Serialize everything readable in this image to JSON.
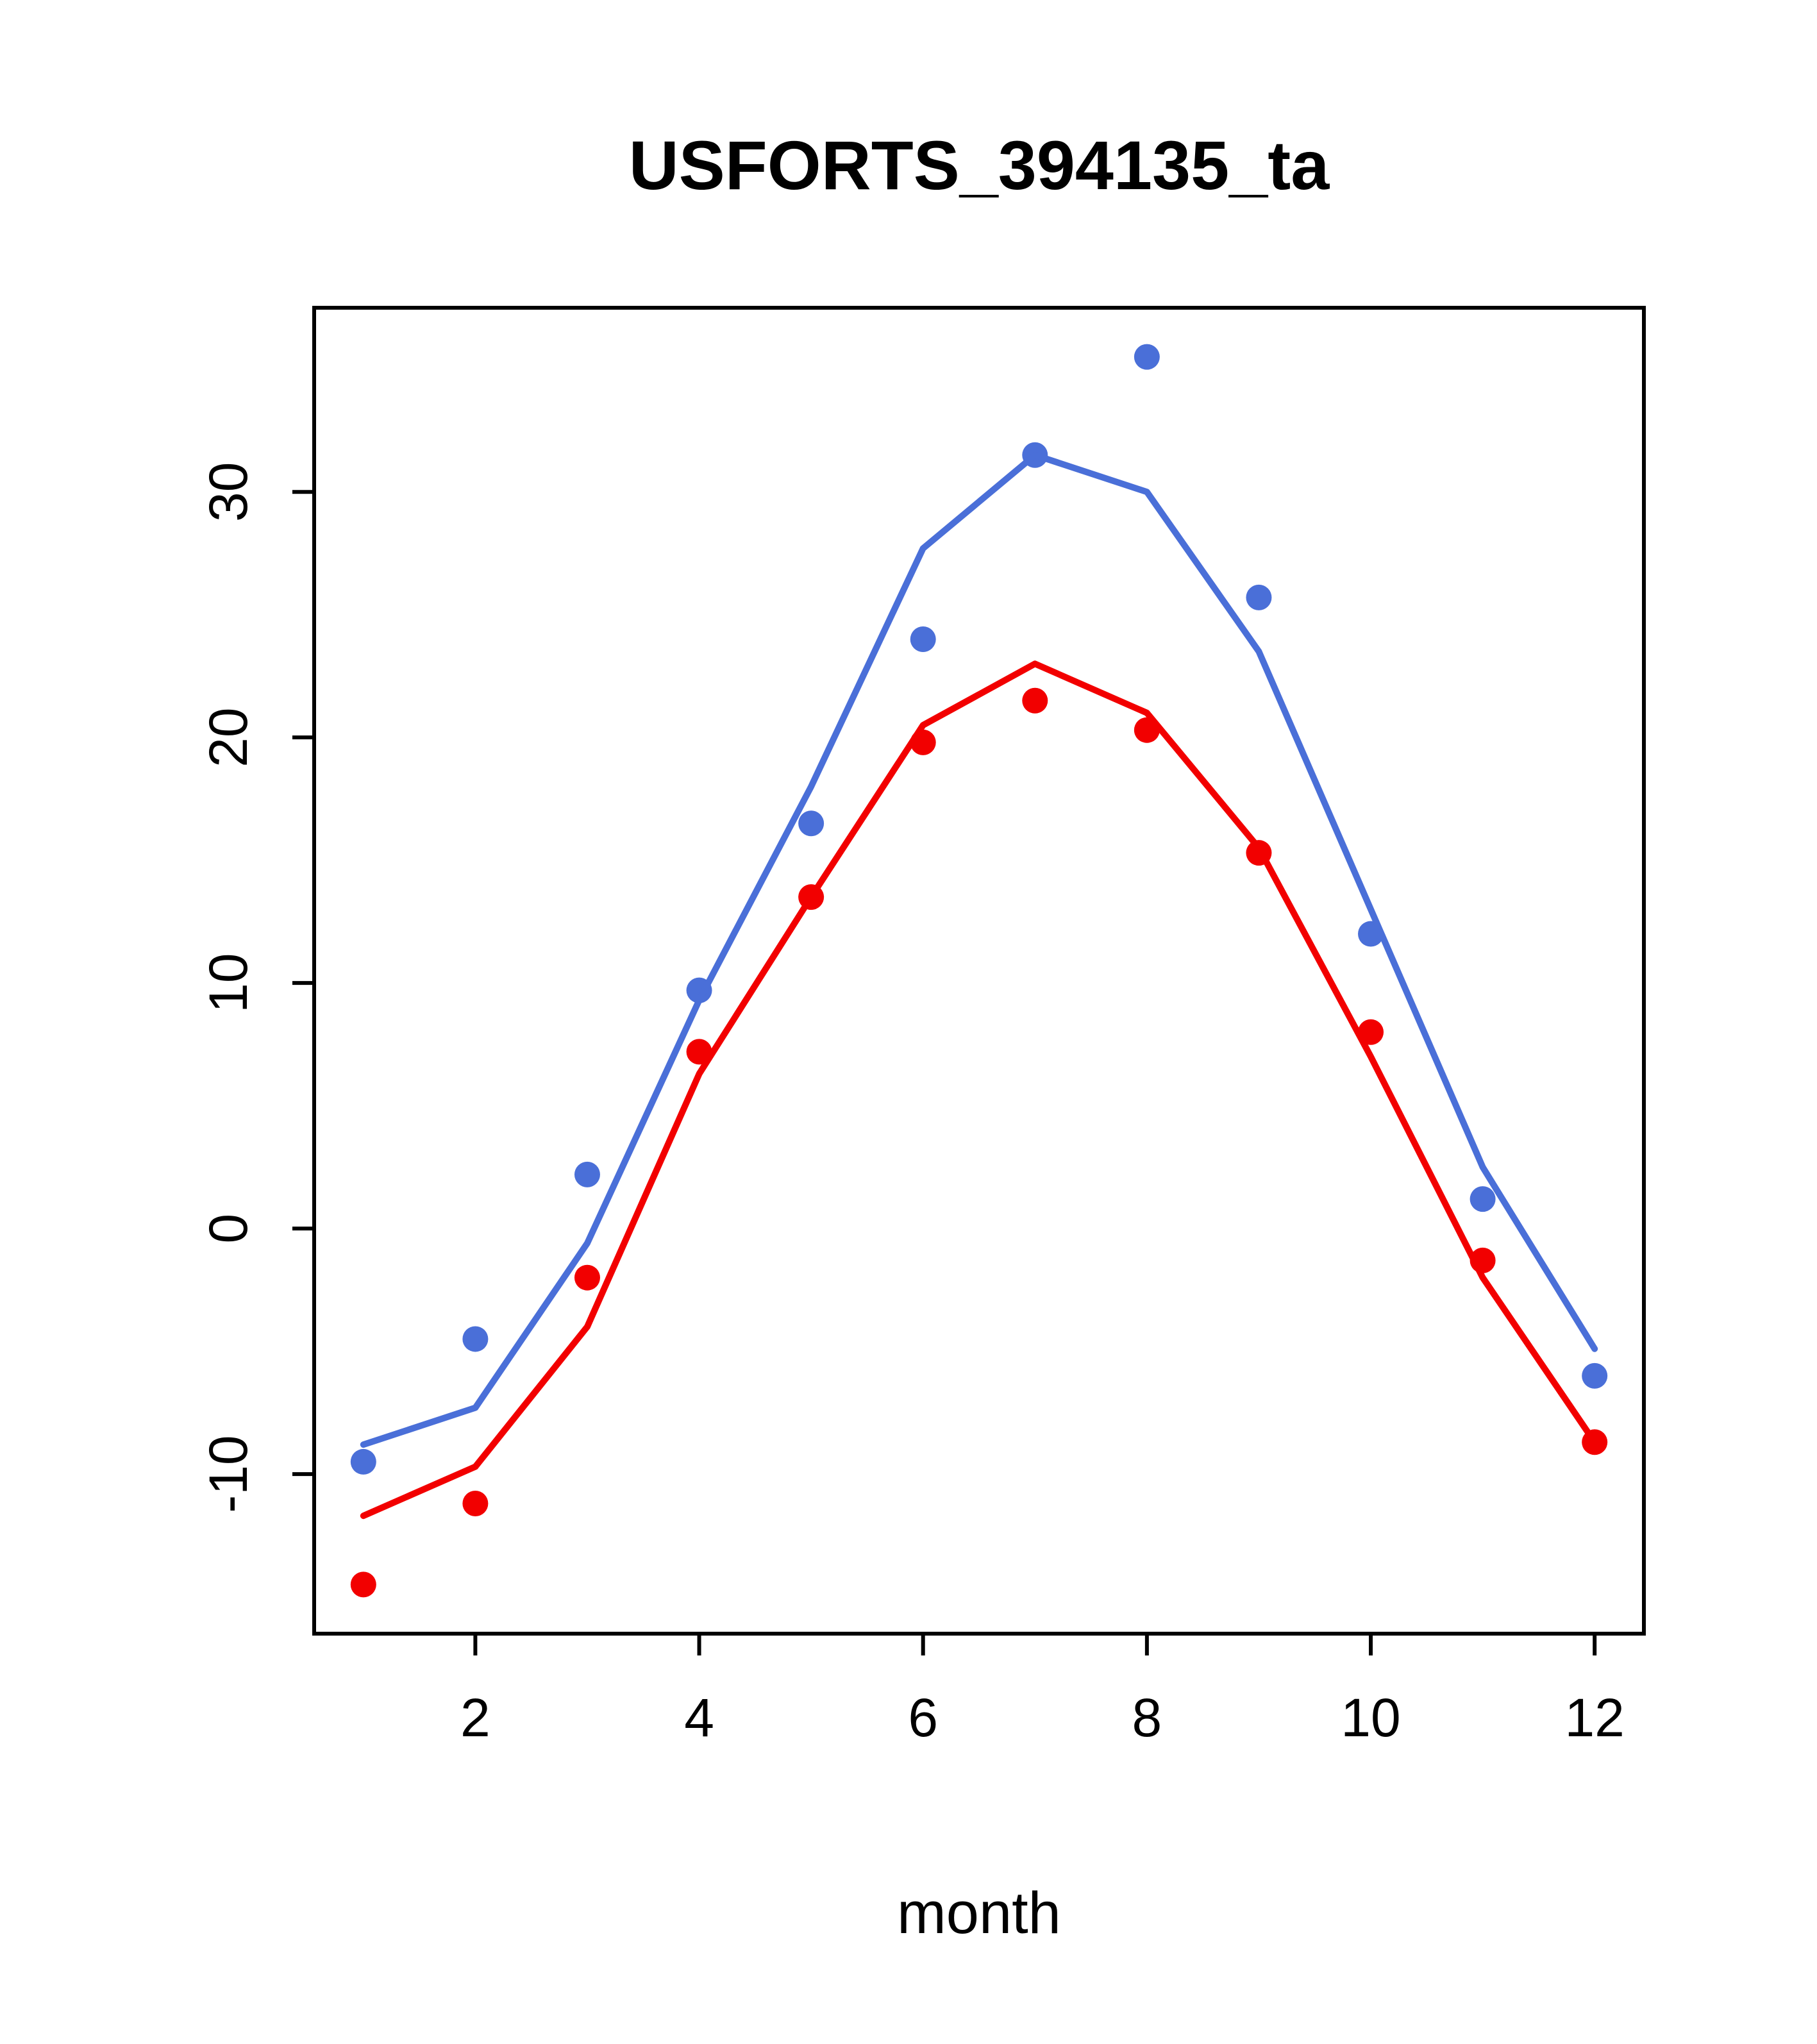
{
  "chart_data": {
    "type": "line",
    "title": "USFORTS_394135_ta",
    "xlabel": "month",
    "ylabel": "",
    "x": [
      1,
      2,
      3,
      4,
      5,
      6,
      7,
      8,
      9,
      10,
      11,
      12
    ],
    "xlim": [
      0.56,
      12.44
    ],
    "ylim": [
      -16.5,
      37.5
    ],
    "xticks": [
      2,
      4,
      6,
      8,
      10,
      12
    ],
    "yticks": [
      -10,
      0,
      10,
      20,
      30
    ],
    "grid": false,
    "legend": "none",
    "axis_color": "#000000",
    "series": [
      {
        "name": "blue-points",
        "style": "points",
        "color": "#4a6fd8",
        "values": [
          -9.5,
          -4.5,
          2.2,
          9.7,
          16.5,
          24.0,
          31.5,
          35.5,
          25.7,
          12.0,
          1.2,
          -6.0
        ]
      },
      {
        "name": "blue-line",
        "style": "line",
        "color": "#4a6fd8",
        "values": [
          -8.8,
          -7.3,
          -0.6,
          9.3,
          18.0,
          27.7,
          31.5,
          30.0,
          23.5,
          13.0,
          2.5,
          -4.9
        ]
      },
      {
        "name": "red-points",
        "style": "points",
        "color": "#f20000",
        "values": [
          -14.5,
          -11.2,
          -2.0,
          7.2,
          13.5,
          19.8,
          21.5,
          20.3,
          15.3,
          8.0,
          -1.3,
          -8.7
        ]
      },
      {
        "name": "red-line",
        "style": "line",
        "color": "#f20000",
        "values": [
          -11.7,
          -9.7,
          -4.0,
          6.3,
          13.5,
          20.5,
          23.0,
          21.0,
          15.5,
          7.0,
          -2.0,
          -8.7
        ]
      }
    ]
  }
}
